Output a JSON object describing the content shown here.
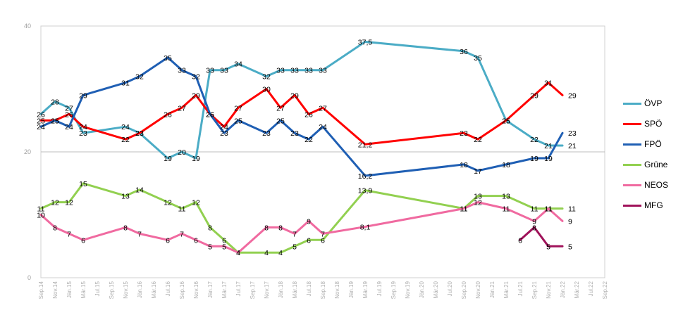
{
  "chart_data": {
    "type": "line",
    "ylim": [
      0,
      40
    ],
    "yticks": [
      0,
      20,
      40
    ],
    "categories": [
      "Sep.14",
      "Nov.14",
      "Jän.15",
      "Mär.15",
      "Jul.15",
      "Sep.15",
      "Nov.15",
      "Jän.16",
      "Mär.16",
      "Jul.16",
      "Sep.16",
      "Nov.16",
      "Jän.17",
      "Mär.17",
      "Jul.17",
      "Sep.17",
      "Nov.17",
      "Jän.18",
      "Mär.18",
      "Jul.18",
      "Sep.18",
      "Nov.18",
      "Jän.19",
      "Mär.19",
      "Jul.19",
      "Sep.19",
      "Nov.19",
      "Jän.20",
      "Mär.20",
      "Jul.20",
      "Sep.20",
      "Nov.20",
      "Jän.21",
      "Mär.21",
      "Jul.21",
      "Sep.21",
      "Nov.21",
      "Jän.22",
      "Mär.22",
      "Jul.22",
      "Sep.22"
    ],
    "series": [
      {
        "name": "ÖVP",
        "color": "#4bacc6",
        "points": [
          [
            0,
            26,
            "26"
          ],
          [
            1,
            28,
            "28"
          ],
          [
            2,
            27,
            "27"
          ],
          [
            3,
            23,
            "23"
          ],
          [
            6,
            24,
            "24"
          ],
          [
            7,
            23,
            "23"
          ],
          [
            9,
            19,
            "19"
          ],
          [
            10,
            20,
            "20"
          ],
          [
            11,
            19,
            "19"
          ],
          [
            12,
            33,
            "33"
          ],
          [
            13,
            33,
            "33"
          ],
          [
            14,
            34,
            "34"
          ],
          [
            16,
            32,
            "32"
          ],
          [
            17,
            33,
            "33"
          ],
          [
            18,
            33,
            "33"
          ],
          [
            19,
            33,
            "33"
          ],
          [
            20,
            33,
            "33"
          ],
          [
            23,
            37.5,
            "37,5"
          ],
          [
            30,
            36,
            "36"
          ],
          [
            31,
            35,
            "35"
          ],
          [
            33,
            25,
            "25"
          ],
          [
            35,
            22,
            "22"
          ],
          [
            36,
            21,
            "21"
          ],
          [
            37,
            21,
            "21"
          ]
        ]
      },
      {
        "name": "SPÖ",
        "color": "#ff0000",
        "points": [
          [
            0,
            25,
            "25"
          ],
          [
            1,
            25,
            "25"
          ],
          [
            2,
            26,
            "26"
          ],
          [
            3,
            24,
            "24"
          ],
          [
            6,
            22,
            "22"
          ],
          [
            7,
            23,
            "23"
          ],
          [
            9,
            26,
            "26"
          ],
          [
            10,
            27,
            "27"
          ],
          [
            11,
            29,
            "29"
          ],
          [
            12,
            26,
            "26"
          ],
          [
            13,
            24,
            "24"
          ],
          [
            14,
            27,
            "27"
          ],
          [
            16,
            30,
            "30"
          ],
          [
            17,
            27,
            "27"
          ],
          [
            18,
            29,
            "29"
          ],
          [
            19,
            26,
            "26"
          ],
          [
            20,
            27,
            "27"
          ],
          [
            23,
            21.2,
            "21,2"
          ],
          [
            30,
            23,
            "23"
          ],
          [
            31,
            22,
            "22"
          ],
          [
            33,
            25,
            "25"
          ],
          [
            35,
            29,
            "29"
          ],
          [
            36,
            31,
            "31"
          ],
          [
            37,
            29,
            "29"
          ]
        ]
      },
      {
        "name": "FPÖ",
        "color": "#1f5fb4",
        "points": [
          [
            0,
            24,
            "24"
          ],
          [
            1,
            25,
            "25"
          ],
          [
            2,
            24,
            "24"
          ],
          [
            3,
            29,
            "29"
          ],
          [
            6,
            31,
            "31"
          ],
          [
            7,
            32,
            "32"
          ],
          [
            9,
            35,
            "35"
          ],
          [
            10,
            33,
            "33"
          ],
          [
            11,
            32,
            "32"
          ],
          [
            12,
            26,
            "26"
          ],
          [
            13,
            23,
            "23"
          ],
          [
            14,
            25,
            "25"
          ],
          [
            16,
            23,
            "23"
          ],
          [
            17,
            25,
            "25"
          ],
          [
            18,
            23,
            "23"
          ],
          [
            19,
            22,
            "22"
          ],
          [
            20,
            24,
            "24"
          ],
          [
            23,
            16.2,
            "16,2"
          ],
          [
            30,
            18,
            "18"
          ],
          [
            31,
            17,
            "17"
          ],
          [
            33,
            18,
            "18"
          ],
          [
            35,
            19,
            "19"
          ],
          [
            36,
            19,
            "19"
          ],
          [
            37,
            23,
            "23"
          ]
        ]
      },
      {
        "name": "Grüne",
        "color": "#92d050",
        "points": [
          [
            0,
            11,
            "11"
          ],
          [
            1,
            12,
            "12"
          ],
          [
            2,
            12,
            "12"
          ],
          [
            3,
            15,
            "15"
          ],
          [
            6,
            13,
            "13"
          ],
          [
            7,
            14,
            "14"
          ],
          [
            9,
            12,
            "12"
          ],
          [
            10,
            11,
            "11"
          ],
          [
            11,
            12,
            "12"
          ],
          [
            12,
            8,
            "8"
          ],
          [
            13,
            6,
            "6"
          ],
          [
            14,
            4,
            "4"
          ],
          [
            16,
            4,
            "4"
          ],
          [
            17,
            4,
            "4"
          ],
          [
            18,
            5,
            "5"
          ],
          [
            19,
            6,
            "6"
          ],
          [
            20,
            6,
            "6"
          ],
          [
            23,
            13.9,
            "13,9"
          ],
          [
            30,
            11,
            "11"
          ],
          [
            31,
            13,
            "13"
          ],
          [
            33,
            13,
            "13"
          ],
          [
            35,
            11,
            "11"
          ],
          [
            36,
            11,
            "11"
          ],
          [
            37,
            11,
            "11"
          ]
        ]
      },
      {
        "name": "NEOS",
        "color": "#f06aa0",
        "points": [
          [
            0,
            10,
            "10"
          ],
          [
            1,
            8,
            "8"
          ],
          [
            2,
            7,
            "7"
          ],
          [
            3,
            6,
            "6"
          ],
          [
            6,
            8,
            "8"
          ],
          [
            7,
            7,
            "7"
          ],
          [
            9,
            6,
            "6"
          ],
          [
            10,
            7,
            "7"
          ],
          [
            11,
            6,
            "6"
          ],
          [
            12,
            5,
            "5"
          ],
          [
            13,
            5,
            "5"
          ],
          [
            14,
            4,
            "4"
          ],
          [
            16,
            8,
            "8"
          ],
          [
            17,
            8,
            "8"
          ],
          [
            18,
            7,
            "7"
          ],
          [
            19,
            9,
            "9"
          ],
          [
            20,
            7,
            "7"
          ],
          [
            23,
            8.1,
            "8,1"
          ],
          [
            30,
            11,
            "11"
          ],
          [
            31,
            12,
            "12"
          ],
          [
            33,
            11,
            "11"
          ],
          [
            35,
            9,
            "9"
          ],
          [
            36,
            11,
            "11"
          ],
          [
            37,
            9,
            "9"
          ]
        ]
      },
      {
        "name": "MFG",
        "color": "#a0125a",
        "points": [
          [
            34,
            6,
            "6"
          ],
          [
            35,
            8,
            "8"
          ],
          [
            36,
            5,
            "5"
          ],
          [
            37,
            5,
            "5"
          ]
        ]
      }
    ]
  }
}
